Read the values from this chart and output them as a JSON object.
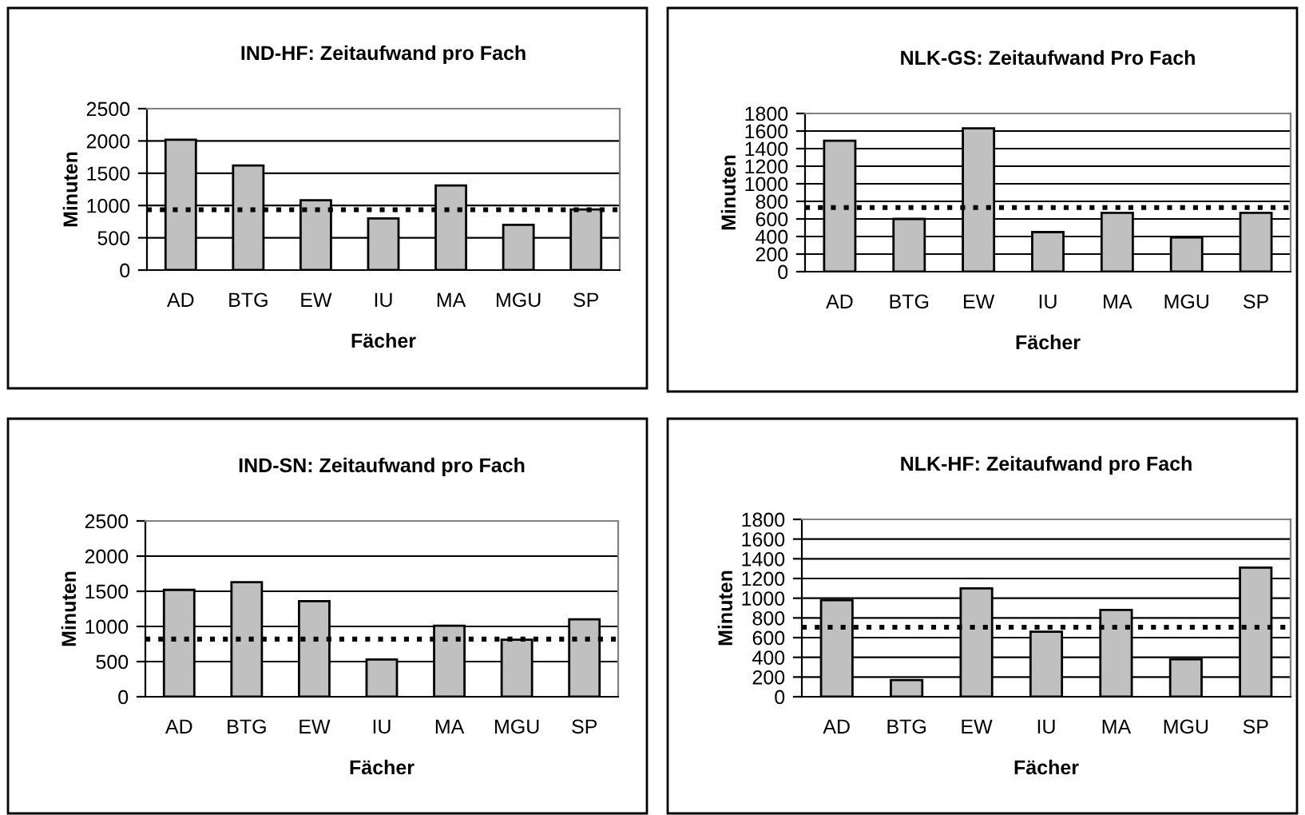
{
  "chart_data": [
    {
      "type": "bar",
      "title": "IND-HF: Zeitaufwand pro Fach",
      "xlabel": "Fächer",
      "ylabel": "Minuten",
      "categories": [
        "AD",
        "BTG",
        "EW",
        "IU",
        "MA",
        "MGU",
        "SP"
      ],
      "values": [
        2020,
        1620,
        1080,
        800,
        1310,
        700,
        940
      ],
      "color": "#c0c0c0",
      "ylim": [
        0,
        2500
      ],
      "yticks": [
        0,
        500,
        1000,
        1500,
        2000,
        2500
      ],
      "grid": "y",
      "ref_lines": [
        {
          "axis": "y",
          "value": 935,
          "color": "#000000",
          "line_style": "dotted"
        }
      ]
    },
    {
      "type": "bar",
      "title": "NLK-GS: Zeitaufwand Pro Fach",
      "xlabel": "Fächer",
      "ylabel": "Minuten",
      "categories": [
        "AD",
        "BTG",
        "EW",
        "IU",
        "MA",
        "MGU",
        "SP"
      ],
      "values": [
        1490,
        600,
        1630,
        450,
        670,
        390,
        670
      ],
      "color": "#c0c0c0",
      "ylim": [
        0,
        1800
      ],
      "yticks": [
        0,
        200,
        400,
        600,
        800,
        1000,
        1200,
        1400,
        1600,
        1800
      ],
      "grid": "y",
      "ref_lines": [
        {
          "axis": "y",
          "value": 730,
          "color": "#000000",
          "line_style": "dotted"
        }
      ]
    },
    {
      "type": "bar",
      "title": "IND-SN: Zeitaufwand pro Fach",
      "xlabel": "Fächer",
      "ylabel": "Minuten",
      "categories": [
        "AD",
        "BTG",
        "EW",
        "IU",
        "MA",
        "MGU",
        "SP"
      ],
      "values": [
        1520,
        1630,
        1360,
        530,
        1010,
        810,
        1100
      ],
      "color": "#c0c0c0",
      "ylim": [
        0,
        2500
      ],
      "yticks": [
        0,
        500,
        1000,
        1500,
        2000,
        2500
      ],
      "grid": "y",
      "ref_lines": [
        {
          "axis": "y",
          "value": 820,
          "color": "#000000",
          "line_style": "dotted"
        }
      ]
    },
    {
      "type": "bar",
      "title": "NLK-HF: Zeitaufwand pro Fach",
      "xlabel": "Fächer",
      "ylabel": "Minuten",
      "categories": [
        "AD",
        "BTG",
        "EW",
        "IU",
        "MA",
        "MGU",
        "SP"
      ],
      "values": [
        980,
        170,
        1100,
        660,
        880,
        380,
        1310
      ],
      "color": "#c0c0c0",
      "ylim": [
        0,
        1800
      ],
      "yticks": [
        0,
        200,
        400,
        600,
        800,
        1000,
        1200,
        1400,
        1600,
        1800
      ],
      "grid": "y",
      "ref_lines": [
        {
          "axis": "y",
          "value": 705,
          "color": "#000000",
          "line_style": "dotted"
        }
      ]
    }
  ]
}
